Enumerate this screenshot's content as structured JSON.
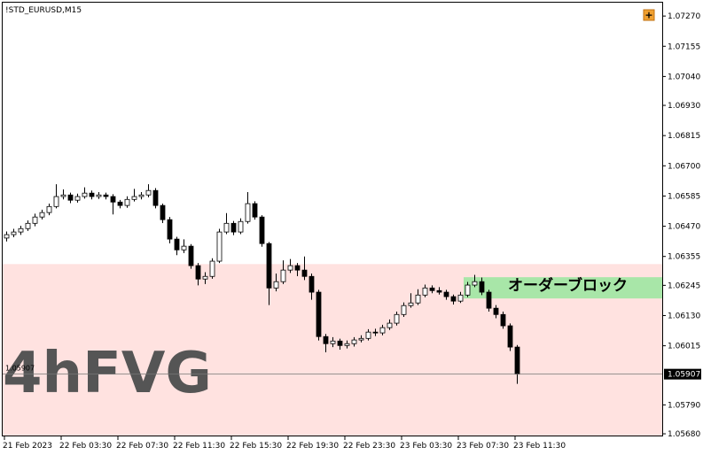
{
  "chart_data": {
    "type": "candlestick",
    "title": "!STD_EURUSD,M15",
    "ylim": [
      1.0567,
      1.07321
    ],
    "yticks": [
      {
        "value": 1.0727,
        "label": "1.07270"
      },
      1.07155,
      {
        "value": 1.0704,
        "label": "1.07040"
      },
      {
        "value": 1.0693,
        "label": "1.06930"
      },
      1.06815,
      {
        "value": 1.067,
        "label": "1.06700"
      },
      1.06585,
      {
        "value": 1.0647,
        "label": "1.06470"
      },
      1.06355,
      1.06245,
      {
        "value": 1.0613,
        "label": "1.06130"
      },
      1.06015,
      {
        "value": 1.0579,
        "label": "1.05790"
      },
      {
        "value": 1.0568,
        "label": "1.05680"
      }
    ],
    "xticks": [
      "21 Feb 2023",
      "22 Feb 03:30",
      "22 Feb 07:30",
      "22 Feb 11:30",
      "22 Feb 15:30",
      "22 Feb 19:30",
      "22 Feb 23:30",
      "23 Feb 03:30",
      "23 Feb 07:30",
      "23 Feb 11:30"
    ],
    "current_price": 1.05907,
    "zones": [
      {
        "label": "4hFVG",
        "top": 1.06326,
        "bottom": 1.0567,
        "color": "#ffe2e0"
      },
      {
        "label": "オーダーブロック",
        "top": 1.06276,
        "bottom": 1.06195,
        "color": "#a8e6a8"
      }
    ],
    "ohlc": [
      [
        1.06425,
        1.0645,
        1.06412,
        1.06438
      ],
      [
        1.06438,
        1.0646,
        1.06428,
        1.06448
      ],
      [
        1.06448,
        1.06472,
        1.06437,
        1.06461
      ],
      [
        1.06461,
        1.06492,
        1.06452,
        1.06481
      ],
      [
        1.06481,
        1.06518,
        1.0647,
        1.06505
      ],
      [
        1.06505,
        1.06533,
        1.06496,
        1.06522
      ],
      [
        1.06522,
        1.06556,
        1.06512,
        1.06545
      ],
      [
        1.06545,
        1.0663,
        1.06538,
        1.06583
      ],
      [
        1.06583,
        1.0661,
        1.06572,
        1.06589
      ],
      [
        1.06589,
        1.06598,
        1.06558,
        1.06569
      ],
      [
        1.06569,
        1.06594,
        1.0656,
        1.06583
      ],
      [
        1.06583,
        1.06618,
        1.06575,
        1.06596
      ],
      [
        1.06596,
        1.06606,
        1.06572,
        1.06583
      ],
      [
        1.06583,
        1.066,
        1.06574,
        1.06589
      ],
      [
        1.06589,
        1.06598,
        1.06572,
        1.06583
      ],
      [
        1.06583,
        1.06592,
        1.06515,
        1.06562
      ],
      [
        1.06562,
        1.0657,
        1.06538,
        1.06549
      ],
      [
        1.06549,
        1.06584,
        1.0654,
        1.06572
      ],
      [
        1.06572,
        1.06612,
        1.06564,
        1.06583
      ],
      [
        1.06583,
        1.066,
        1.06572,
        1.06589
      ],
      [
        1.06589,
        1.0663,
        1.0658,
        1.06606
      ],
      [
        1.06606,
        1.06615,
        1.06538,
        1.06549
      ],
      [
        1.06549,
        1.06556,
        1.06482,
        1.06495
      ],
      [
        1.06495,
        1.06505,
        1.06405,
        1.06421
      ],
      [
        1.06421,
        1.0643,
        1.0636,
        1.0638
      ],
      [
        1.0638,
        1.0642,
        1.06368,
        1.06394
      ],
      [
        1.06394,
        1.06402,
        1.06308,
        1.0632
      ],
      [
        1.0632,
        1.0633,
        1.06245,
        1.06269
      ],
      [
        1.06269,
        1.06295,
        1.0625,
        1.06279
      ],
      [
        1.06279,
        1.06348,
        1.0627,
        1.06337
      ],
      [
        1.06337,
        1.0646,
        1.0633,
        1.06448
      ],
      [
        1.06448,
        1.0652,
        1.0644,
        1.06481
      ],
      [
        1.06481,
        1.0649,
        1.06436,
        1.06448
      ],
      [
        1.06448,
        1.065,
        1.0644,
        1.06488
      ],
      [
        1.06488,
        1.066,
        1.0648,
        1.06556
      ],
      [
        1.06556,
        1.06565,
        1.06495,
        1.06505
      ],
      [
        1.06505,
        1.06512,
        1.06392,
        1.06404
      ],
      [
        1.06404,
        1.0641,
        1.0617,
        1.06235
      ],
      [
        1.06235,
        1.0629,
        1.06222,
        1.06259
      ],
      [
        1.06259,
        1.0634,
        1.0625,
        1.06303
      ],
      [
        1.06303,
        1.06345,
        1.06292,
        1.0632
      ],
      [
        1.0632,
        1.0633,
        1.0628,
        1.06303
      ],
      [
        1.06303,
        1.06355,
        1.06265,
        1.06279
      ],
      [
        1.06279,
        1.0629,
        1.0619,
        1.06219
      ],
      [
        1.06219,
        1.06228,
        1.06035,
        1.0605
      ],
      [
        1.0605,
        1.0606,
        1.0599,
        1.06023
      ],
      [
        1.06023,
        1.06048,
        1.0601,
        1.06033
      ],
      [
        1.06033,
        1.06042,
        1.06,
        1.06016
      ],
      [
        1.06016,
        1.06035,
        1.06005,
        1.06023
      ],
      [
        1.06023,
        1.06048,
        1.06012,
        1.06037
      ],
      [
        1.06037,
        1.06055,
        1.06028,
        1.06043
      ],
      [
        1.06043,
        1.06078,
        1.06035,
        1.06067
      ],
      [
        1.06067,
        1.0608,
        1.06052,
        1.06064
      ],
      [
        1.06064,
        1.06095,
        1.06055,
        1.06084
      ],
      [
        1.06084,
        1.06115,
        1.06075,
        1.06101
      ],
      [
        1.06101,
        1.06145,
        1.06092,
        1.06134
      ],
      [
        1.06134,
        1.0618,
        1.06125,
        1.06168
      ],
      [
        1.06168,
        1.06215,
        1.0616,
        1.06178
      ],
      [
        1.06178,
        1.0623,
        1.0617,
        1.06208
      ],
      [
        1.06208,
        1.06248,
        1.062,
        1.06235
      ],
      [
        1.06235,
        1.06245,
        1.06215,
        1.06225
      ],
      [
        1.06225,
        1.06238,
        1.0621,
        1.06219
      ],
      [
        1.06219,
        1.06228,
        1.0619,
        1.06202
      ],
      [
        1.06202,
        1.0621,
        1.06172,
        1.06185
      ],
      [
        1.06185,
        1.0622,
        1.06178,
        1.06208
      ],
      [
        1.06208,
        1.06258,
        1.062,
        1.06246
      ],
      [
        1.06246,
        1.06285,
        1.06238,
        1.06259
      ],
      [
        1.06259,
        1.06275,
        1.06208,
        1.06219
      ],
      [
        1.06219,
        1.06228,
        1.06145,
        1.06158
      ],
      [
        1.06158,
        1.0617,
        1.0612,
        1.06134
      ],
      [
        1.06134,
        1.06145,
        1.0608,
        1.06091
      ],
      [
        1.06091,
        1.061,
        1.05995,
        1.0601
      ],
      [
        1.0601,
        1.06018,
        1.0587,
        1.05907
      ]
    ]
  }
}
